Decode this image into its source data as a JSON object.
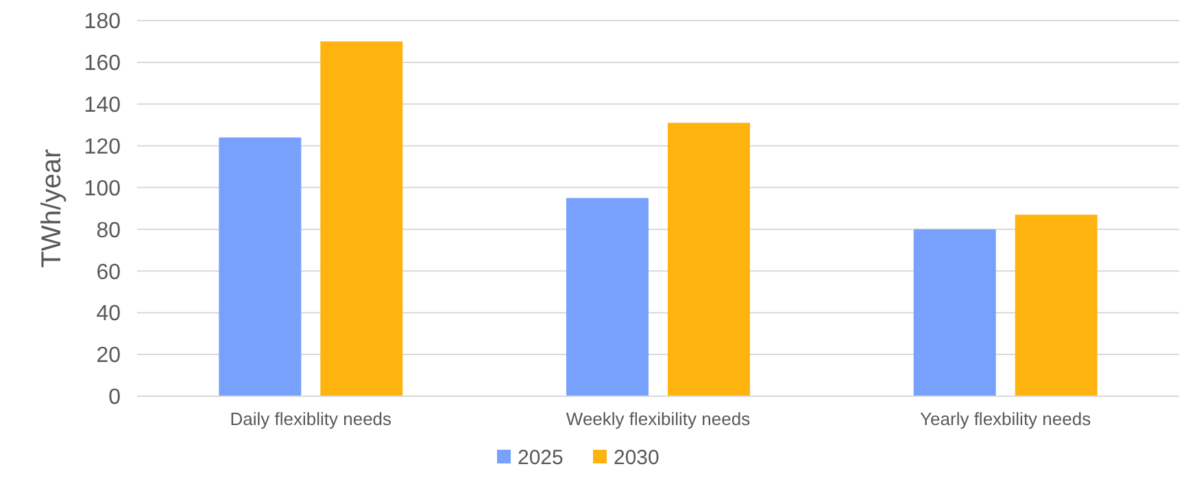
{
  "chart_data": {
    "type": "bar",
    "ylabel": "TWh/year",
    "categories": [
      "Daily flexiblity needs",
      "Weekly flexibility needs",
      "Yearly flexbility needs"
    ],
    "series": [
      {
        "name": "2025",
        "color": "#77a1fc",
        "values": [
          124,
          95,
          80
        ]
      },
      {
        "name": "2030",
        "color": "#ffb30f",
        "values": [
          170,
          131,
          87
        ]
      }
    ],
    "ylim": [
      0,
      180
    ],
    "yticks": [
      0,
      20,
      40,
      60,
      80,
      100,
      120,
      140,
      160,
      180
    ],
    "grid": "y",
    "legend": "bottom"
  }
}
